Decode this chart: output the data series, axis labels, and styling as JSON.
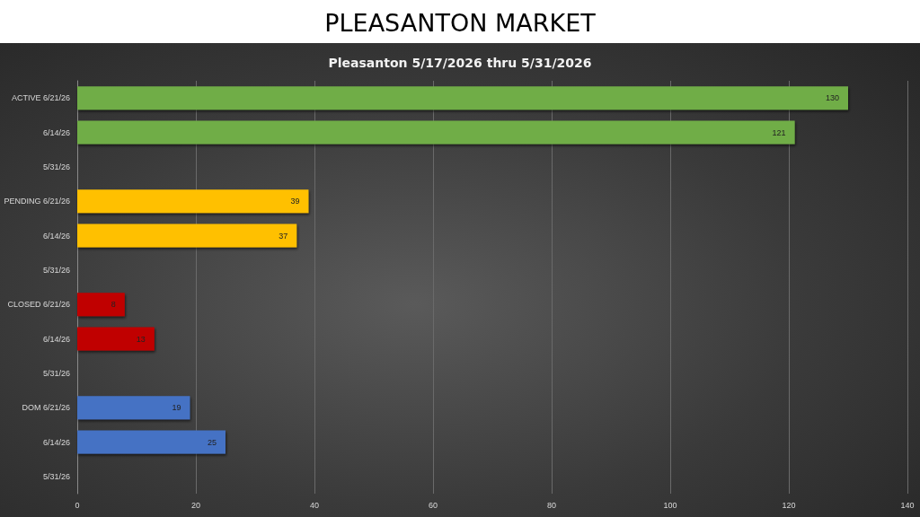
{
  "chart_data": {
    "type": "bar",
    "orientation": "horizontal",
    "title": "PLEASANTON MARKET",
    "subtitle": "Pleasanton 5/17/2026 thru 5/31/2026",
    "categories": [
      "ACTIVE 6/21/26",
      "6/14/26",
      "5/31/26",
      "PENDING 6/21/26",
      "6/14/26",
      "5/31/26",
      "CLOSED 6/21/26",
      "6/14/26",
      "5/31/26",
      "DOM 6/21/26",
      "6/14/26",
      "5/31/26"
    ],
    "values": [
      130,
      121,
      null,
      39,
      37,
      null,
      8,
      13,
      null,
      19,
      25,
      null
    ],
    "colors": [
      "#70ad47",
      "#70ad47",
      "#70ad47",
      "#ffc000",
      "#ffc000",
      "#ffc000",
      "#c00000",
      "#c00000",
      "#c00000",
      "#4472c4",
      "#4472c4",
      "#4472c4"
    ],
    "xlim": [
      0,
      140
    ],
    "xticks": [
      0,
      20,
      40,
      60,
      80,
      100,
      120,
      140
    ],
    "grid": "x",
    "data_labels": true
  }
}
